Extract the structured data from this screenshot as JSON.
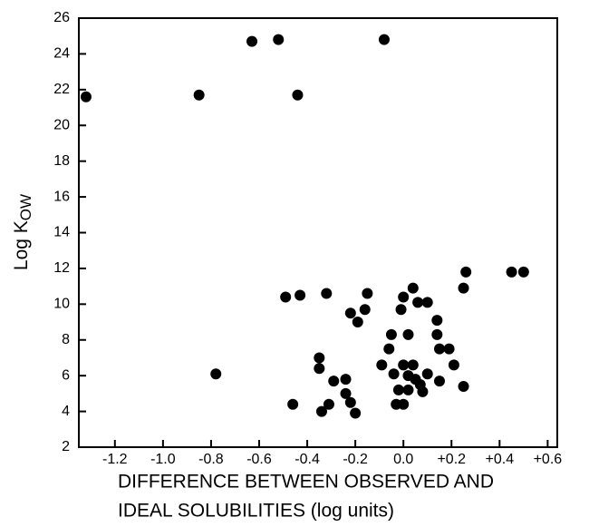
{
  "chart_data": {
    "type": "scatter",
    "ylabel": "Log K",
    "ylabel_subscript": "OW",
    "xlabel": [
      "DIFFERENCE BETWEEN OBSERVED AND",
      "IDEAL SOLUBILITIES (log units)"
    ],
    "color": "#000000",
    "x": [
      -1.32,
      -0.85,
      -0.44,
      -0.63,
      -0.52,
      -0.08,
      -0.78,
      -0.49,
      -0.43,
      -0.32,
      -0.22,
      -0.19,
      -0.16,
      -0.15,
      -0.46,
      -0.35,
      -0.35,
      -0.34,
      -0.31,
      -0.29,
      -0.24,
      -0.24,
      -0.22,
      -0.2,
      -0.09,
      -0.06,
      -0.05,
      -0.04,
      -0.03,
      -0.02,
      -0.01,
      0.0,
      0.0,
      0.0,
      0.02,
      0.02,
      0.02,
      0.04,
      0.04,
      0.05,
      0.06,
      0.07,
      0.08,
      0.1,
      0.1,
      0.14,
      0.14,
      0.15,
      0.15,
      0.19,
      0.21,
      0.25,
      0.25,
      0.26,
      0.45,
      0.5
    ],
    "values": [
      21.6,
      21.7,
      21.7,
      24.7,
      24.8,
      24.8,
      6.1,
      10.4,
      10.5,
      10.6,
      9.5,
      9.0,
      9.7,
      10.6,
      4.4,
      7.0,
      6.4,
      4.0,
      4.4,
      5.7,
      5.8,
      5.0,
      4.5,
      3.9,
      6.6,
      7.5,
      8.3,
      6.1,
      4.4,
      5.2,
      9.7,
      10.4,
      6.6,
      4.4,
      8.3,
      6.0,
      5.2,
      10.9,
      6.6,
      5.8,
      10.1,
      5.5,
      5.1,
      6.1,
      10.1,
      9.1,
      8.3,
      7.5,
      5.7,
      7.5,
      6.6,
      5.4,
      10.9,
      11.8,
      11.8,
      11.8
    ],
    "xlim": [
      -1.35,
      0.64
    ],
    "xticks": [
      {
        "value": -1.2,
        "label": "-1.2"
      },
      {
        "value": -1.0,
        "label": "-1.0"
      },
      {
        "value": -0.8,
        "label": "-0.8"
      },
      {
        "value": -0.6,
        "label": "-0.6"
      },
      {
        "value": -0.4,
        "label": "-0.4"
      },
      {
        "value": -0.2,
        "label": "-0.2"
      },
      {
        "value": 0,
        "label": "0.0"
      },
      {
        "value": 0.2,
        "label": "+0.2"
      },
      {
        "value": 0.4,
        "label": "+0.4"
      },
      {
        "value": 0.6,
        "label": "+0.6"
      }
    ],
    "ylim": [
      2,
      26
    ],
    "yticks": [
      2,
      4,
      6,
      8,
      10,
      12,
      14,
      16,
      18,
      20,
      22,
      24,
      26
    ],
    "grid": false
  }
}
